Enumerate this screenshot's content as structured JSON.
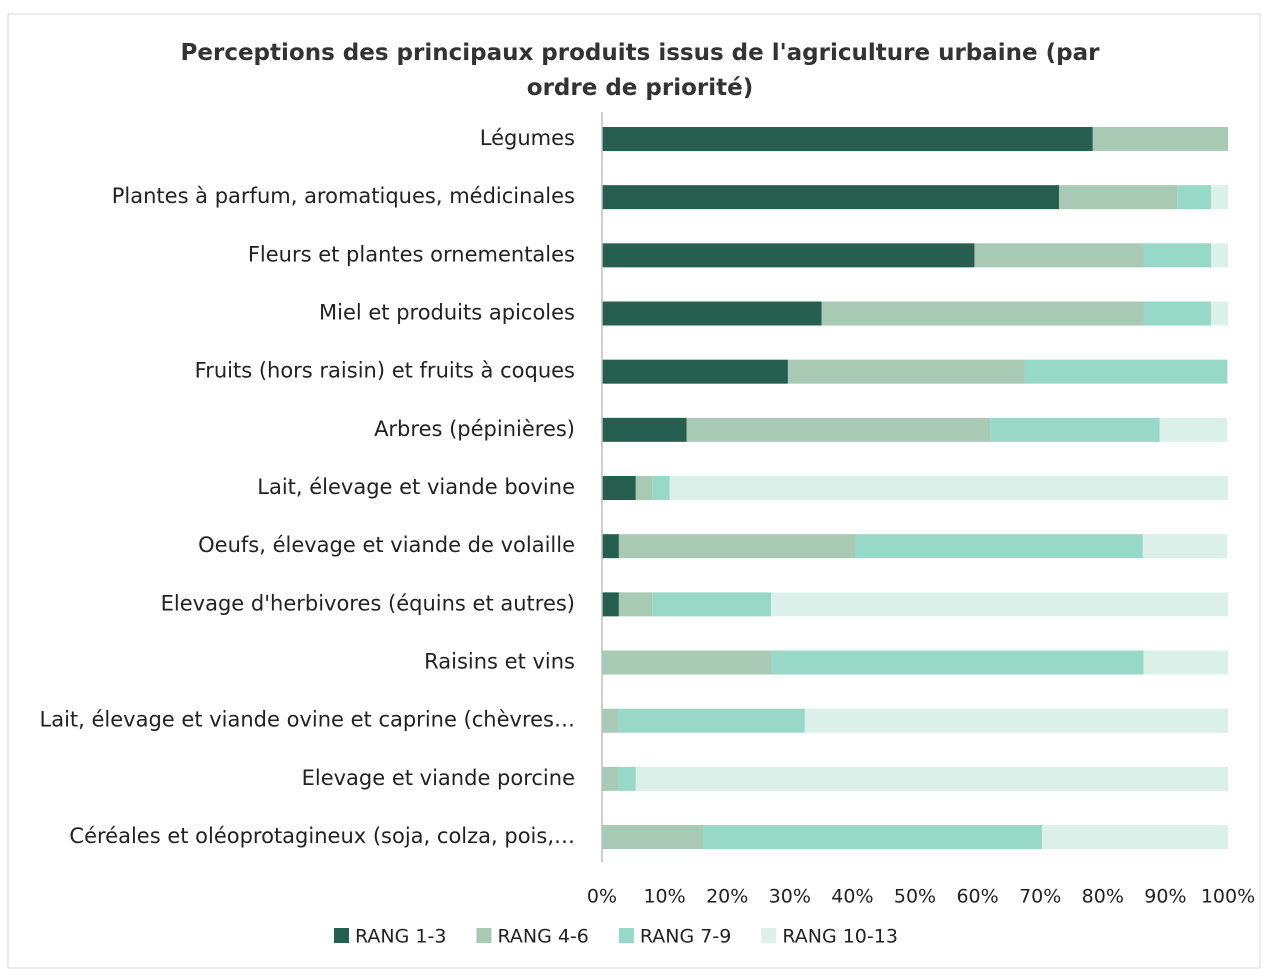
{
  "chart_data": {
    "type": "stacked-bar-horizontal",
    "title": "Perceptions des principaux produits issus de l'agriculture urbaine  (par ordre de priorité)",
    "categories": [
      "Légumes",
      "Plantes à parfum, aromatiques, médicinales",
      "Fleurs et plantes ornementales",
      "Miel et produits apicoles",
      "Fruits (hors raisin) et fruits à coques",
      "Arbres (pépinières)",
      "Lait, élevage et viande bovine",
      "Oeufs, élevage et viande de volaille",
      "Elevage d'herbivores (équins et autres)",
      "Raisins et vins",
      "Lait, élevage et viande ovine et caprine (chèvres…",
      "Elevage et viande porcine",
      "Céréales et oléoprotagineux (soja, colza, pois,…"
    ],
    "series": [
      {
        "name": "RANG 1-3",
        "color": "#265e50",
        "values": [
          78.4,
          73.0,
          59.5,
          35.1,
          29.7,
          13.5,
          5.4,
          2.7,
          2.7,
          0,
          0,
          0,
          0
        ]
      },
      {
        "name": "RANG 4-6",
        "color": "#a8c9b4",
        "values": [
          21.6,
          18.9,
          27.0,
          51.4,
          37.8,
          48.6,
          2.7,
          37.8,
          5.4,
          27.0,
          2.7,
          2.7,
          16.2
        ]
      },
      {
        "name": "RANG 7-9",
        "color": "#98d8c6",
        "values": [
          0,
          5.4,
          10.8,
          10.8,
          32.4,
          27.0,
          2.7,
          45.9,
          18.9,
          59.5,
          29.7,
          2.7,
          54.1
        ]
      },
      {
        "name": "RANG 10-13",
        "color": "#dcf0ea",
        "values": [
          0,
          2.7,
          2.7,
          2.7,
          0,
          10.8,
          89.2,
          13.5,
          73.0,
          13.5,
          67.6,
          94.6,
          29.7
        ]
      }
    ],
    "xlim": [
      0,
      100
    ],
    "xticks": [
      {
        "value": 0,
        "label": "0%"
      },
      {
        "value": 10,
        "label": "10%"
      },
      {
        "value": 20,
        "label": "20%"
      },
      {
        "value": 30,
        "label": "30%"
      },
      {
        "value": 40,
        "label": "40%"
      },
      {
        "value": 50,
        "label": "50%"
      },
      {
        "value": 60,
        "label": "60%"
      },
      {
        "value": 70,
        "label": "70%"
      },
      {
        "value": 80,
        "label": "80%"
      },
      {
        "value": 90,
        "label": "90%"
      },
      {
        "value": 100,
        "label": "100%"
      }
    ],
    "legend": "bottom"
  }
}
